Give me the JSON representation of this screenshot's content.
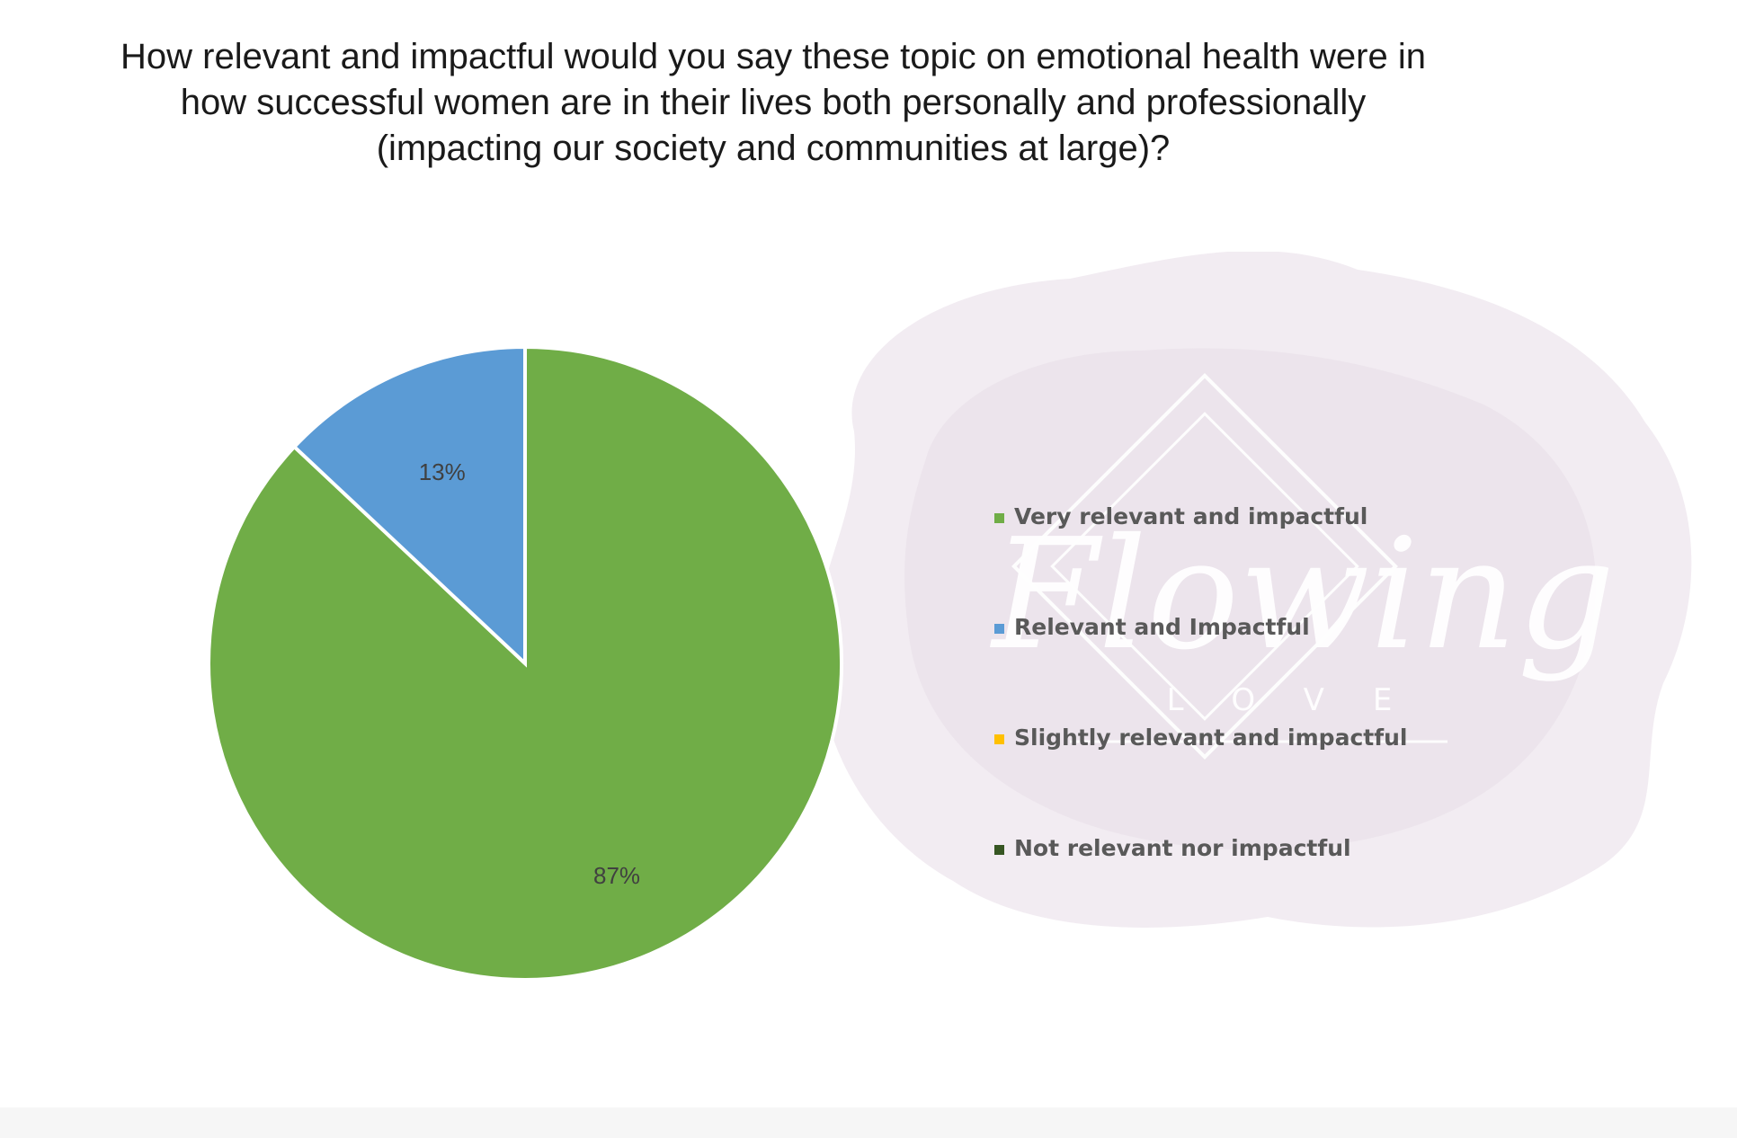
{
  "title": {
    "lines": [
      "How relevant and impactful would you say these topic on emotional health were in",
      "how successful women are in their lives both personally and professionally",
      "(impacting our society and communities at large)?"
    ]
  },
  "watermark": {
    "script": "Flowing",
    "word": "LOVE"
  },
  "colors": {
    "very": "#70ad47",
    "relevant": "#5b9bd5",
    "slightly": "#ffc000",
    "not": "#375623"
  },
  "chart_data": {
    "type": "pie",
    "title": "How relevant and impactful would you say these topic on emotional health were in how successful women are in their lives both personally and professionally (impacting our society and communities at large)?",
    "categories": [
      "Very relevant and impactful",
      "Relevant and Impactful",
      "Slightly relevant and impactful",
      "Not relevant nor impactful"
    ],
    "values": [
      87,
      13,
      0,
      0
    ],
    "data_labels": [
      "87%",
      "13%",
      "",
      ""
    ],
    "colors": [
      "#70ad47",
      "#5b9bd5",
      "#ffc000",
      "#375623"
    ],
    "legend_position": "right"
  }
}
